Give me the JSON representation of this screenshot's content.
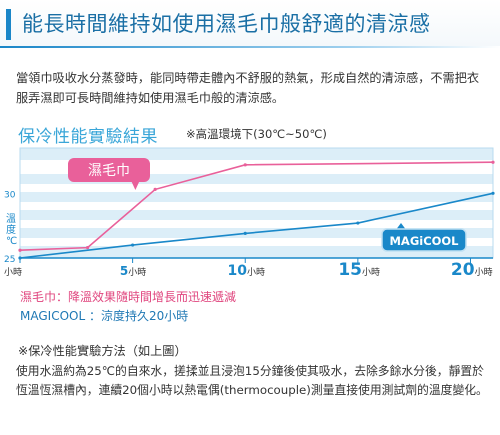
{
  "header": {
    "title": "能長時間維持如使用濕毛巾般舒適的清涼感"
  },
  "intro": "當領巾吸收水分蒸發時，能同時帶走體內不舒服的熱氣，形成自然的清涼感，不需把衣服弄濕即可長時間維持如使用濕毛巾般的清涼感。",
  "chart_section": {
    "title": "保冷性能實驗結果",
    "subtitle": "※高溫環境下(30℃~50℃)"
  },
  "legend": {
    "towel": "濕毛巾：降溫效果隨時間增長而迅速遞減",
    "magicool": "MAGICOOL ：涼度持久20小時"
  },
  "method": {
    "heading": "※保冷性能實驗方法（如上圖）",
    "text": "使用水溫約為25℃的自來水，搓揉並且浸泡15分鐘後使其吸水，去除多餘水分後，靜置於恆溫恆濕槽內，連續20個小時以熱電偶(thermocouple)測量直接使用測試劑的溫度變化。"
  },
  "colors": {
    "accent": "#1a86c8",
    "towel": "#e9609a",
    "magicool": "#1a88c9",
    "bands": "#dceef8"
  },
  "chart_data": {
    "type": "line",
    "title": "保冷性能實驗結果",
    "subtitle": "※高溫環境下(30℃~50℃)",
    "xlabel": "",
    "ylabel": "溫度 ℃",
    "x_ticks": [
      {
        "value": 0,
        "label": "小時",
        "number": ""
      },
      {
        "value": 5,
        "label": "小時",
        "number": "5"
      },
      {
        "value": 10,
        "label": "小時",
        "number": "10"
      },
      {
        "value": 15,
        "label": "小時",
        "number": "15"
      },
      {
        "value": 20,
        "label": "小時",
        "number": "20"
      }
    ],
    "y_ticks": [
      25,
      30
    ],
    "xlim": [
      0,
      21
    ],
    "ylim": [
      25,
      33.5
    ],
    "series": [
      {
        "name": "濕毛巾",
        "color": "#e9609a",
        "x": [
          0,
          3,
          6,
          10,
          21
        ],
        "y": [
          25.6,
          25.8,
          30.3,
          32.2,
          32.4
        ]
      },
      {
        "name": "MAGiCOOL",
        "color": "#1a88c9",
        "x": [
          0,
          5,
          10,
          15,
          21
        ],
        "y": [
          25.0,
          26.0,
          26.9,
          27.7,
          30.0
        ]
      }
    ],
    "grid": "horizontal bands"
  }
}
